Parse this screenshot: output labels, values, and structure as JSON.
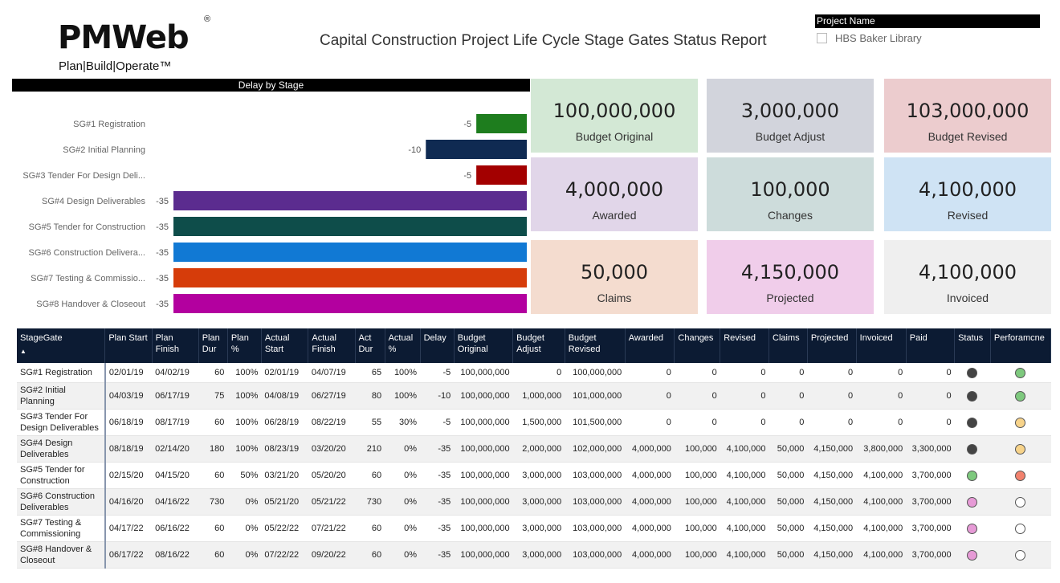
{
  "logo": {
    "brand": "PMWeb",
    "reg": "®",
    "tagline": "Plan|Build|Operate™"
  },
  "title": "Capital Construction Project Life Cycle Stage Gates Status Report",
  "project_filter": {
    "header": "Project Name",
    "option": "HBS Baker Library",
    "checked": false
  },
  "chart_data": {
    "type": "bar",
    "title": "Delay by Stage",
    "categories": [
      "SG#1 Registration",
      "SG#2 Initial Planning",
      "SG#3 Tender For Design Deli...",
      "SG#4 Design Deliverables",
      "SG#5 Tender for Construction",
      "SG#6 Construction Delivera...",
      "SG#7 Testing & Commissio...",
      "SG#8 Handover & Closeout"
    ],
    "values": [
      -5,
      -10,
      -5,
      -35,
      -35,
      -35,
      -35,
      -35
    ],
    "labels": [
      "-5",
      "-10",
      "-5",
      "-35",
      "-35",
      "-35",
      "-35",
      "-35"
    ],
    "colors": [
      "#1e7d1e",
      "#0f2a52",
      "#a30000",
      "#5b2c8f",
      "#0e4d4a",
      "#1179d4",
      "#d63c0a",
      "#b3009f"
    ],
    "xlim": [
      -35,
      0
    ]
  },
  "cards": [
    {
      "value": "100,000,000",
      "label": "Budget Original",
      "bg": "#d3e8d5"
    },
    {
      "value": "3,000,000",
      "label": "Budget Adjust",
      "bg": "#d2d4dc"
    },
    {
      "value": "103,000,000",
      "label": "Budget Revised",
      "bg": "#ecccce"
    },
    {
      "value": "4,000,000",
      "label": "Awarded",
      "bg": "#e1d6e9"
    },
    {
      "value": "100,000",
      "label": "Changes",
      "bg": "#cddcdb"
    },
    {
      "value": "4,100,000",
      "label": "Revised",
      "bg": "#cfe3f4"
    },
    {
      "value": "50,000",
      "label": "Claims",
      "bg": "#f4dccf"
    },
    {
      "value": "4,150,000",
      "label": "Projected",
      "bg": "#f0cdea"
    },
    {
      "value": "4,100,000",
      "label": "Invoiced",
      "bg": "#efefef"
    }
  ],
  "table": {
    "headers": [
      "StageGate",
      "Plan Start",
      "Plan Finish",
      "Plan Dur",
      "Plan %",
      "Actual Start",
      "Actual Finish",
      "Act Dur",
      "Actual %",
      "Delay",
      "Budget Original",
      "Budget Adjust",
      "Budget Revised",
      "Awarded",
      "Changes",
      "Revised",
      "Claims",
      "Projected",
      "Invoiced",
      "Paid",
      "Status",
      "Perforamcne"
    ],
    "sort_icon": "▲",
    "rows": [
      {
        "cells": [
          "SG#1 Registration",
          "02/01/19",
          "04/02/19",
          "60",
          "100%",
          "02/01/19",
          "04/07/19",
          "65",
          "100%",
          "-5",
          "100,000,000",
          "0",
          "100,000,000",
          "0",
          "0",
          "0",
          "0",
          "0",
          "0",
          "0"
        ],
        "status": "#444444",
        "perf": "#7ec97e"
      },
      {
        "cells": [
          "SG#2 Initial Planning",
          "04/03/19",
          "06/17/19",
          "75",
          "100%",
          "04/08/19",
          "06/27/19",
          "80",
          "100%",
          "-10",
          "100,000,000",
          "1,000,000",
          "101,000,000",
          "0",
          "0",
          "0",
          "0",
          "0",
          "0",
          "0"
        ],
        "status": "#444444",
        "perf": "#7ec97e"
      },
      {
        "cells": [
          "SG#3 Tender For Design Deliverables",
          "06/18/19",
          "08/17/19",
          "60",
          "100%",
          "06/28/19",
          "08/22/19",
          "55",
          "30%",
          "-5",
          "100,000,000",
          "1,500,000",
          "101,500,000",
          "0",
          "0",
          "0",
          "0",
          "0",
          "0",
          "0"
        ],
        "status": "#444444",
        "perf": "#f7d38a"
      },
      {
        "cells": [
          "SG#4 Design Deliverables",
          "08/18/19",
          "02/14/20",
          "180",
          "100%",
          "08/23/19",
          "03/20/20",
          "210",
          "0%",
          "-35",
          "100,000,000",
          "2,000,000",
          "102,000,000",
          "4,000,000",
          "100,000",
          "4,100,000",
          "50,000",
          "4,150,000",
          "3,800,000",
          "3,300,000"
        ],
        "status": "#444444",
        "perf": "#f7d38a"
      },
      {
        "cells": [
          "SG#5 Tender for Construction",
          "02/15/20",
          "04/15/20",
          "60",
          "50%",
          "03/21/20",
          "05/20/20",
          "60",
          "0%",
          "-35",
          "100,000,000",
          "3,000,000",
          "103,000,000",
          "4,000,000",
          "100,000",
          "4,100,000",
          "50,000",
          "4,150,000",
          "4,100,000",
          "3,700,000"
        ],
        "status": "#7ec97e",
        "perf": "#f2826e"
      },
      {
        "cells": [
          "SG#6 Construction Deliverables",
          "04/16/20",
          "04/16/22",
          "730",
          "0%",
          "05/21/20",
          "05/21/22",
          "730",
          "0%",
          "-35",
          "100,000,000",
          "3,000,000",
          "103,000,000",
          "4,000,000",
          "100,000",
          "4,100,000",
          "50,000",
          "4,150,000",
          "4,100,000",
          "3,700,000"
        ],
        "status": "#e69ad6",
        "perf": "#ffffff"
      },
      {
        "cells": [
          "SG#7 Testing & Commissioning",
          "04/17/22",
          "06/16/22",
          "60",
          "0%",
          "05/22/22",
          "07/21/22",
          "60",
          "0%",
          "-35",
          "100,000,000",
          "3,000,000",
          "103,000,000",
          "4,000,000",
          "100,000",
          "4,100,000",
          "50,000",
          "4,150,000",
          "4,100,000",
          "3,700,000"
        ],
        "status": "#e69ad6",
        "perf": "#ffffff"
      },
      {
        "cells": [
          "SG#8 Handover & Closeout",
          "06/17/22",
          "08/16/22",
          "60",
          "0%",
          "07/22/22",
          "09/20/22",
          "60",
          "0%",
          "-35",
          "100,000,000",
          "3,000,000",
          "103,000,000",
          "4,000,000",
          "100,000",
          "4,100,000",
          "50,000",
          "4,150,000",
          "4,100,000",
          "3,700,000"
        ],
        "status": "#e69ad6",
        "perf": "#ffffff"
      }
    ]
  }
}
